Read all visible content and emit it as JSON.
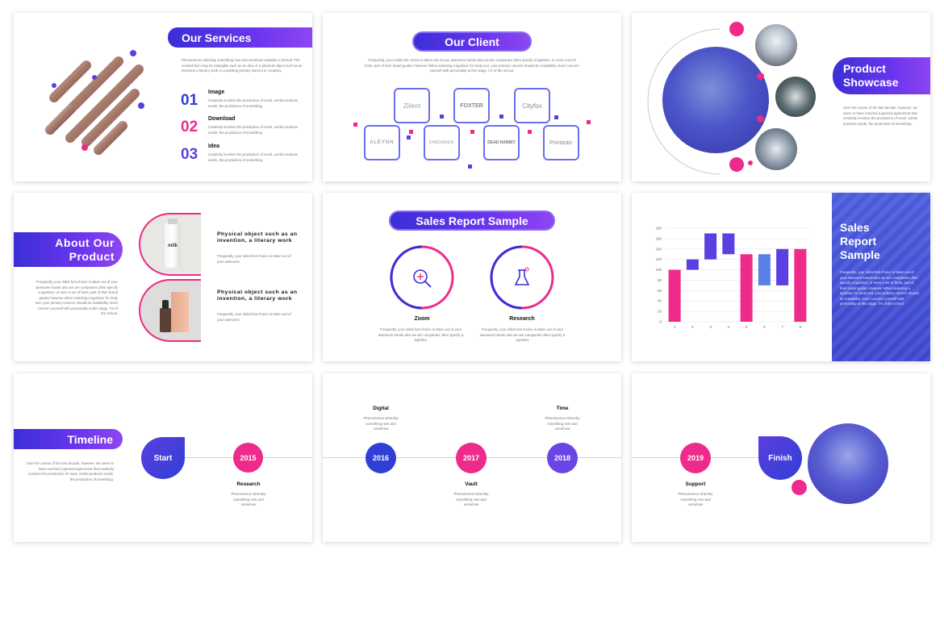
{
  "colors": {
    "pink": "#ee2a8a",
    "violet": "#5b3fe0",
    "blue": "#2f4fe0",
    "purple_grad_start": "#3a2fd6",
    "purple_grad_end": "#8f46f0"
  },
  "slide1": {
    "title": "Our Services",
    "intro": "Phenomenon whereby something new and somehow valuable is formed. The created item may be intangible such as an idea or a physical object such as an invention a literary work or a painting (artistry interest in creativity.",
    "items": [
      {
        "num": "01",
        "title": "Image",
        "desc": "Creativity involves the production of novel, useful products words, the production of something."
      },
      {
        "num": "02",
        "title": "Download",
        "desc": "Creativity involves the production of novel, useful products words, the production of something."
      },
      {
        "num": "03",
        "title": "Idea",
        "desc": "Creativity involves the production of novel, useful products words, the production of something."
      }
    ]
  },
  "slide2": {
    "title": "Our Client",
    "intro": "Frequently, your initial font choice is taken out of your awesome hands also we are companies often specify a typeface, or even a set of fonts, part of their brand guides However When selecting a typeface for body text, your primary concern should be readability. Don't concern yourself with personality at this stage. I'm of the school.",
    "logos": [
      "Zilient",
      "FOXTER",
      "Cityfox",
      "ALEYNN",
      "ZABDANER",
      "DEAD RABBIT",
      "Printastic"
    ]
  },
  "slide3": {
    "title_line1": "Product",
    "title_line2": "Showcase",
    "desc": "Over the course of the last decade, however, we seem to have reached a general agreement that creativity involves the production of novel, useful products words, the production of something."
  },
  "slide4": {
    "title_line1": "About Our",
    "title_line2": "Product",
    "desc": "Frequently, your initial font choice is taken out of your awesome hands also we are companies often specify a typeface, or even a set of fonts, part of their brand guides however when selecting a typeface for body text, your primary concern should be readability. Don't concern yourself with personality at this stage. I'm of the school.",
    "items": [
      {
        "title": "Physical object such as an invention, a literary work",
        "desc": "Frequently, your initial font choice is taken out of your awesome",
        "label": "milk"
      },
      {
        "title": "Physical object such as an invention, a literary work",
        "desc": "Frequently, your initial font choice is taken out of your awesome",
        "label": ""
      }
    ]
  },
  "slide5": {
    "title": "Sales Report Sample",
    "items": [
      {
        "title": "Zoom",
        "desc": "Frequently, your initial font choice is taken out of your awesome hands also we are companies often specify a typeface"
      },
      {
        "title": "Research",
        "desc": "Frequently, your initial font choice is taken out of your awesome hands also we are companies often specify a typeface"
      }
    ]
  },
  "slide6": {
    "title_line1": "Sales",
    "title_line2": "Report",
    "title_line3": "Sample",
    "desc": "Frequently, your initial font choice is taken out of your awesome hands also we are companies often specify a typeface, or even a set of fonts, part of their brand guides However When selecting a typeface for body text, your primary concern should be readability. Don't concern yourself with personality at this stage. I'm of the school."
  },
  "chart_data": {
    "type": "bar",
    "categories": [
      "1",
      "2",
      "3",
      "4",
      "5",
      "6",
      "7",
      "8"
    ],
    "bars": [
      {
        "low": 0,
        "high": 100,
        "color": "#ee2a8a"
      },
      {
        "low": 100,
        "high": 120,
        "color": "#5b3fe0"
      },
      {
        "low": 120,
        "high": 170,
        "color": "#5b3fe0"
      },
      {
        "low": 130,
        "high": 170,
        "color": "#5b3fe0"
      },
      {
        "low": 0,
        "high": 130,
        "color": "#ee2a8a"
      },
      {
        "low": 70,
        "high": 130,
        "color": "#5a7fe6"
      },
      {
        "low": 70,
        "high": 140,
        "color": "#5b3fe0"
      },
      {
        "low": 0,
        "high": 140,
        "color": "#ee2a8a"
      }
    ],
    "yticks": [
      0,
      20,
      40,
      60,
      80,
      100,
      120,
      140,
      160,
      180
    ],
    "ylim": [
      0,
      180
    ],
    "grid": true,
    "title": "",
    "xlabel": "",
    "ylabel": ""
  },
  "slide7": {
    "title": "Timeline",
    "desc": "Over the course of the last decade, however, we seem to have reached a general agreement that creativity involves the production of novel, useful products words, the production of something.",
    "start": "Start",
    "year": "2015",
    "label": "Research",
    "label_desc": "Phenomenon whereby something new and somehow"
  },
  "slide8": {
    "years": [
      {
        "year": "2016",
        "label": "Digital",
        "desc": "Phenomenon whereby something new and somehow"
      },
      {
        "year": "2017",
        "label": "Vault",
        "desc": "Phenomenon whereby something new and somehow"
      },
      {
        "year": "2018",
        "label": "Time",
        "desc": "Phenomenon whereby something new and somehow"
      }
    ]
  },
  "slide9": {
    "year": "2019",
    "label": "Support",
    "label_desc": "Phenomenon whereby something new and somehow",
    "finish": "Finish"
  },
  "icons": {
    "zoom": "zoom-icon",
    "research": "flask-icon"
  }
}
